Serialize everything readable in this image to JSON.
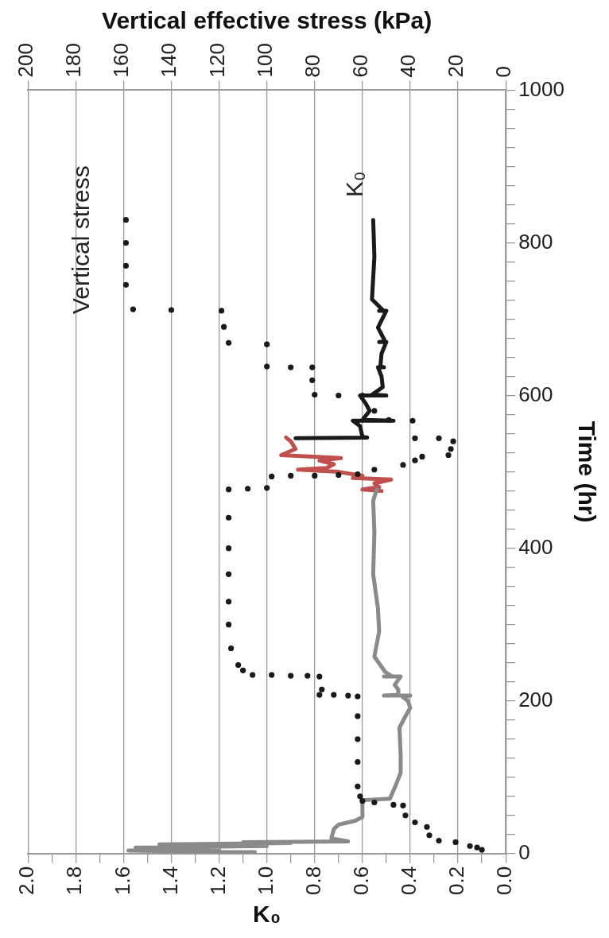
{
  "chart_data": {
    "type": "line",
    "xlabel": "K₀",
    "x2label": "Vertical effective stress (kPa)",
    "ylabel": "Time (hr)",
    "xlim": [
      2,
      0
    ],
    "xticks": [
      {
        "value": 2,
        "label": "2.0"
      },
      {
        "value": 1.9,
        "label": null
      },
      1.8,
      {
        "value": 1.7,
        "label": null
      },
      1.6,
      {
        "value": 1.5,
        "label": null
      },
      1.4,
      {
        "value": 1.3,
        "label": null
      },
      1.2,
      {
        "value": 1.1,
        "label": null
      },
      {
        "value": 1,
        "label": "1.0"
      },
      {
        "value": 0.9,
        "label": null
      },
      0.8,
      {
        "value": 0.7,
        "label": null
      },
      0.6,
      {
        "value": 0.5,
        "label": null
      },
      0.4,
      {
        "value": 0.3,
        "label": null
      },
      0.2,
      {
        "value": 0.1,
        "label": null
      },
      {
        "value": 0,
        "label": "0.0"
      }
    ],
    "x2lim": [
      200,
      0
    ],
    "x2ticks": [
      200,
      180,
      160,
      140,
      120,
      100,
      80,
      60,
      40,
      20,
      0
    ],
    "ylim": [
      0,
      1000
    ],
    "yticks": [
      0,
      {
        "value": 25,
        "label": null
      },
      {
        "value": 50,
        "label": null
      },
      {
        "value": 75,
        "label": null
      },
      {
        "value": 100,
        "label": null
      },
      {
        "value": 125,
        "label": null
      },
      {
        "value": 150,
        "label": null
      },
      {
        "value": 175,
        "label": null
      },
      200,
      {
        "value": 225,
        "label": null
      },
      {
        "value": 250,
        "label": null
      },
      {
        "value": 275,
        "label": null
      },
      {
        "value": 300,
        "label": null
      },
      {
        "value": 325,
        "label": null
      },
      {
        "value": 350,
        "label": null
      },
      {
        "value": 375,
        "label": null
      },
      400,
      {
        "value": 425,
        "label": null
      },
      {
        "value": 450,
        "label": null
      },
      {
        "value": 475,
        "label": null
      },
      {
        "value": 500,
        "label": null
      },
      {
        "value": 525,
        "label": null
      },
      {
        "value": 550,
        "label": null
      },
      {
        "value": 575,
        "label": null
      },
      600,
      {
        "value": 625,
        "label": null
      },
      {
        "value": 650,
        "label": null
      },
      {
        "value": 675,
        "label": null
      },
      {
        "value": 700,
        "label": null
      },
      {
        "value": 725,
        "label": null
      },
      {
        "value": 750,
        "label": null
      },
      {
        "value": 775,
        "label": null
      },
      800,
      {
        "value": 825,
        "label": null
      },
      {
        "value": 850,
        "label": null
      },
      {
        "value": 875,
        "label": null
      },
      {
        "value": 900,
        "label": null
      },
      {
        "value": 925,
        "label": null
      },
      {
        "value": 950,
        "label": null
      },
      {
        "value": 975,
        "label": null
      },
      1000
    ],
    "grid": "x",
    "legend": false,
    "series": [
      {
        "name": "Vertical stress",
        "type": "scatter",
        "axis": "x2",
        "marker": "circle",
        "color": "#1a1a1a",
        "values": [
          5,
          8,
          10,
          15,
          17,
          24,
          35,
          41,
          50,
          63,
          64,
          67,
          69,
          75,
          88,
          120,
          150,
          180,
          206,
          207,
          208,
          208,
          215,
          232,
          233,
          233,
          234,
          234,
          240,
          247,
          269,
          300,
          330,
          366,
          400,
          440,
          477,
          478,
          479,
          494,
          495,
          495,
          496,
          497,
          503,
          509,
          515,
          520,
          522,
          530,
          540,
          544,
          544,
          567,
          568,
          580,
          600,
          600,
          601,
          620,
          637,
          637,
          638,
          667,
          669,
          690,
          711,
          712,
          713,
          745,
          770,
          800,
          830
        ],
        "x": [
          10,
          12,
          15,
          21,
          28,
          32,
          33,
          38,
          42,
          43,
          47,
          55,
          60,
          61,
          62,
          62,
          62,
          62,
          62,
          66,
          72,
          78,
          77,
          78,
          83,
          90,
          98,
          106,
          110,
          112,
          115,
          116,
          116,
          116,
          116,
          116,
          116,
          108,
          100,
          98,
          90,
          80,
          70,
          62,
          55,
          43,
          38,
          35,
          24,
          23,
          22,
          28,
          38,
          39,
          49,
          55,
          60,
          70,
          80,
          81,
          81,
          90,
          100,
          100,
          116,
          118,
          119,
          140,
          156,
          159,
          159,
          159,
          159
        ]
      },
      {
        "type": "line",
        "marker": "none",
        "color": "#8a8a8c",
        "values": [
          2,
          4,
          6,
          8,
          10,
          12,
          14,
          15,
          16,
          20,
          32,
          38,
          43,
          48,
          70,
          72,
          90,
          106,
          130,
          165,
          180,
          191,
          200,
          205,
          207,
          207,
          208,
          215,
          221,
          232,
          232,
          233,
          238,
          258,
          291,
          321,
          366,
          421,
          462,
          477
        ],
        "x": [
          1.05,
          1.58,
          1.2,
          1.55,
          1.0,
          1.45,
          0.9,
          1.1,
          0.66,
          0.73,
          0.72,
          0.7,
          0.63,
          0.6,
          0.6,
          0.485,
          0.46,
          0.44,
          0.44,
          0.445,
          0.42,
          0.4,
          0.41,
          0.43,
          0.4,
          0.51,
          0.45,
          0.45,
          0.465,
          0.44,
          0.51,
          0.48,
          0.505,
          0.55,
          0.53,
          0.535,
          0.555,
          0.55,
          0.555,
          0.54
        ]
      },
      {
        "type": "line",
        "marker": "none",
        "color": "#c0504d",
        "values": [
          475,
          477,
          480,
          485,
          490,
          492,
          495,
          500,
          503,
          505,
          510,
          515,
          518,
          522,
          530,
          540,
          545
        ],
        "x": [
          0.52,
          0.6,
          0.53,
          0.55,
          0.48,
          0.64,
          0.6,
          0.7,
          0.87,
          0.75,
          0.72,
          0.78,
          0.69,
          0.94,
          0.88,
          0.9,
          0.92
        ]
      },
      {
        "name": "K₀",
        "type": "line",
        "marker": "none",
        "color": "#1a1a1a",
        "values": [
          544,
          545,
          546,
          560,
          567,
          567,
          568,
          580,
          589,
          600,
          600,
          601,
          611,
          625,
          637,
          637,
          638,
          655,
          670,
          670,
          671,
          689,
          711,
          711,
          712,
          726,
          782,
          830
        ],
        "x": [
          0.88,
          0.58,
          0.6,
          0.61,
          0.64,
          0.47,
          0.6,
          0.57,
          0.585,
          0.61,
          0.5,
          0.56,
          0.515,
          0.52,
          0.535,
          0.51,
          0.525,
          0.52,
          0.5,
          0.53,
          0.505,
          0.535,
          0.5,
          0.53,
          0.515,
          0.56,
          0.55,
          0.555
        ]
      }
    ]
  }
}
